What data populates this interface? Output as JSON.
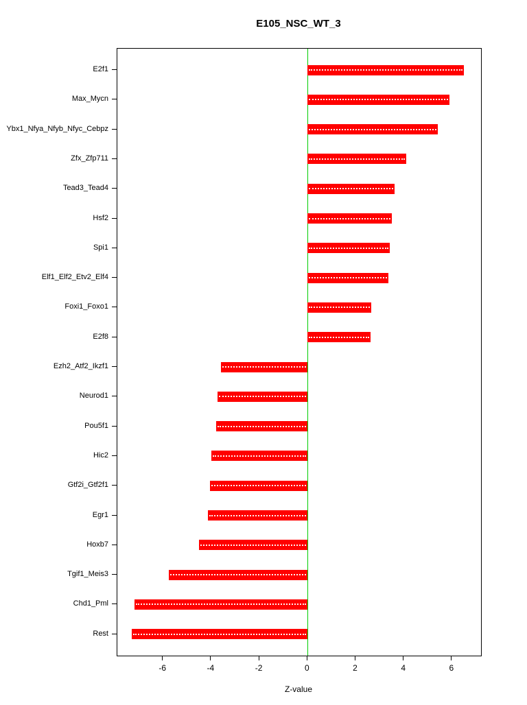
{
  "chart_data": {
    "type": "bar",
    "orientation": "horizontal",
    "title": "E105_NSC_WT_3",
    "xlabel": "Z-value",
    "categories": [
      "E2f1",
      "Max_Mycn",
      "Ybx1_Nfya_Nfyb_Nfyc_Cebpz",
      "Zfx_Zfp711",
      "Tead3_Tead4",
      "Hsf2",
      "Spi1",
      "Elf1_Elf2_Etv2_Elf4",
      "Foxi1_Foxo1",
      "E2f8",
      "Ezh2_Atf2_Ikzf1",
      "Neurod1",
      "Pou5f1",
      "Hic2",
      "Gtf2i_Gtf2f1",
      "Egr1",
      "Hoxb7",
      "Tgif1_Meis3",
      "Chd1_Pml",
      "Rest"
    ],
    "values": [
      6.5,
      5.9,
      5.4,
      4.1,
      3.6,
      3.5,
      3.4,
      3.35,
      2.65,
      2.6,
      -3.6,
      -3.75,
      -3.8,
      -4.0,
      -4.05,
      -4.15,
      -4.5,
      -5.75,
      -7.2,
      -7.3
    ],
    "xlim": [
      -7.9,
      7.2
    ],
    "x_ticks": [
      -6,
      -4,
      -2,
      0,
      2,
      4,
      6
    ],
    "bar_color": "#FF0000",
    "bar_stripe_color": "#FFFFFF",
    "zero_line_color": "#00CC00",
    "axis_color": "#000000",
    "grid": false,
    "legend": "none"
  }
}
